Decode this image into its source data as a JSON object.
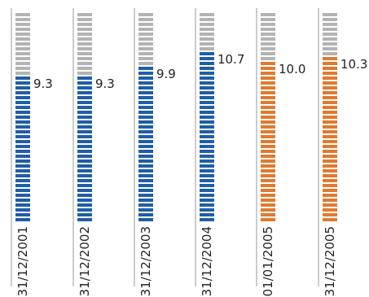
{
  "chart_data": {
    "type": "bar",
    "title": "",
    "xlabel": "",
    "ylabel": "",
    "ylim": [
      0,
      13.4
    ],
    "grid": false,
    "legend": "none",
    "categories": [
      "31/12/2001",
      "31/12/2002",
      "31/12/2003",
      "31/12/2004",
      "01/01/2005",
      "31/12/2005"
    ],
    "values": [
      9.3,
      9.3,
      9.9,
      10.7,
      10.0,
      10.3
    ],
    "value_labels": [
      "9.3",
      "9.3",
      "9.9",
      "10.7",
      "10.0",
      "10.3"
    ],
    "bar_colors": [
      "#1f5ea8",
      "#1f5ea8",
      "#1f5ea8",
      "#1f5ea8",
      "#e07a2e",
      "#e07a2e"
    ],
    "track_color": "#b3b3b3",
    "divider_color": "#9a9a9a",
    "label_color": "#222222"
  }
}
